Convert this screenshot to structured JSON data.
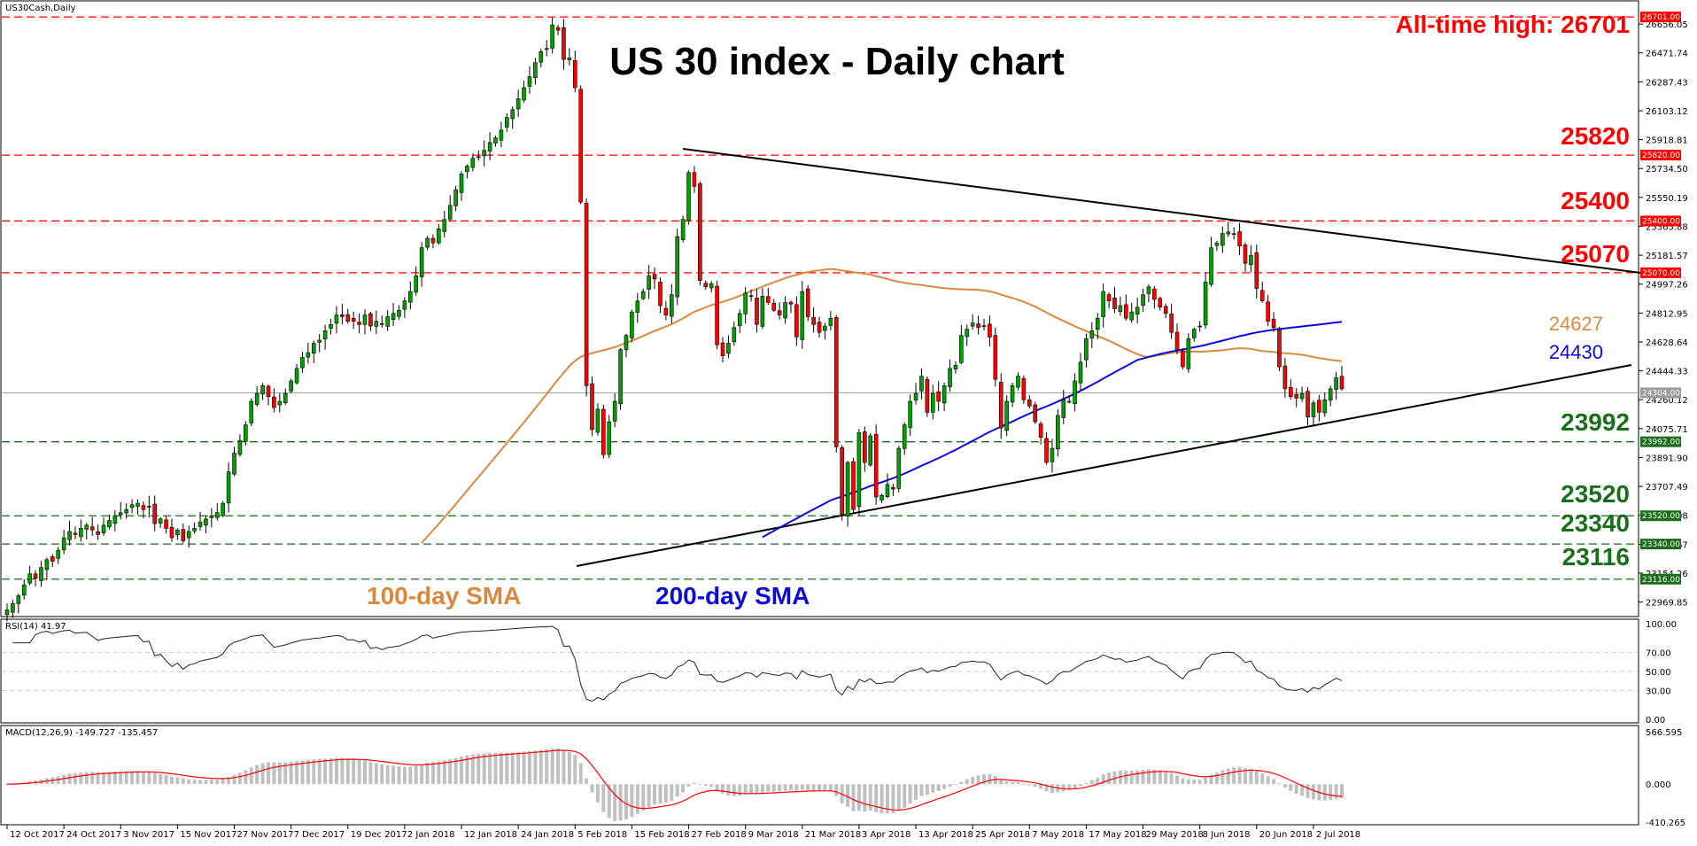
{
  "chart_data": [
    {
      "type": "candlestick",
      "symbol_label": "US30Cash,Daily",
      "title": "US 30 index - Daily chart",
      "ylim": [
        22900,
        26730
      ],
      "y_ticks": [
        22969.85,
        23154.26,
        23338.67,
        23523.08,
        23707.49,
        23891.9,
        24075.71,
        24260.12,
        24444.33,
        24628.64,
        24812.95,
        24997.26,
        25181.57,
        25365.88,
        25550.19,
        25734.5,
        25918.81,
        26103.12,
        26287.43,
        26471.74,
        26656.05
      ],
      "y_tick_labels": [
        "22969.85",
        "23154.26",
        "23338.67",
        "23523.08",
        "23707.49",
        "23891.90",
        "24075.71",
        "24260.12",
        "24444.33",
        "24628.64",
        "24812.95",
        "24997.26",
        "25181.57",
        "25365.88",
        "25550.19",
        "25734.50",
        "25918.81",
        "26103.12",
        "26287.43",
        "26471.74",
        "26656.05"
      ],
      "x_tick_labels": [
        "12 Oct 2017",
        "24 Oct 2017",
        "3 Nov 2017",
        "15 Nov 2017",
        "27 Nov 2017",
        "7 Dec 2017",
        "19 Dec 2017",
        "2 Jan 2018",
        "12 Jan 2018",
        "24 Jan 2018",
        "5 Feb 2018",
        "15 Feb 2018",
        "27 Feb 2018",
        "9 Mar 2018",
        "21 Mar 2018",
        "3 Apr 2018",
        "13 Apr 2018",
        "25 Apr 2018",
        "7 May 2018",
        "17 May 2018",
        "29 May 2018",
        "8 Jun 2018",
        "20 Jun 2018",
        "2 Jul 2018"
      ],
      "closes": [
        22920,
        22960,
        23010,
        23080,
        23150,
        23120,
        23190,
        23240,
        23230,
        23300,
        23380,
        23420,
        23400,
        23440,
        23460,
        23430,
        23400,
        23460,
        23490,
        23520,
        23540,
        23560,
        23590,
        23600,
        23560,
        23580,
        23470,
        23500,
        23440,
        23380,
        23430,
        23360,
        23420,
        23440,
        23480,
        23500,
        23520,
        23540,
        23600,
        23800,
        23920,
        24000,
        24100,
        24250,
        24300,
        24350,
        24280,
        24210,
        24250,
        24300,
        24380,
        24460,
        24530,
        24560,
        24620,
        24640,
        24700,
        24740,
        24800,
        24790,
        24760,
        24760,
        24740,
        24800,
        24730,
        24760,
        24740,
        24790,
        24810,
        24830,
        24890,
        24950,
        25050,
        25230,
        25290,
        25260,
        25350,
        25410,
        25500,
        25600,
        25700,
        25750,
        25800,
        25810,
        25850,
        25900,
        25930,
        25980,
        26060,
        26110,
        26180,
        26250,
        26320,
        26410,
        26480,
        26500,
        26650,
        26616,
        26430,
        26440,
        26250,
        25520,
        24350,
        24070,
        24200,
        23910,
        24120,
        24250,
        24580,
        24670,
        24820,
        24890,
        24950,
        25050,
        25030,
        24860,
        24800,
        24930,
        25300,
        25410,
        25709,
        25620,
        25020,
        24980,
        25000,
        24610,
        24540,
        24620,
        24720,
        24810,
        24940,
        24920,
        24740,
        24920,
        24880,
        24830,
        24800,
        24880,
        24870,
        24660,
        24950,
        24790,
        24740,
        24690,
        24730,
        24780,
        23960,
        23530,
        23860,
        23560,
        24050,
        23860,
        24030,
        23640,
        23650,
        23720,
        23690,
        23950,
        24100,
        24250,
        24300,
        24410,
        24180,
        24300,
        24250,
        24350,
        24460,
        24480,
        24670,
        24710,
        24750,
        24720,
        24730,
        24660,
        24390,
        24080,
        24250,
        24350,
        24410,
        24260,
        24220,
        24120,
        24020,
        23860,
        23950,
        24160,
        24260,
        24250,
        24380,
        24500,
        24650,
        24700,
        24780,
        24950,
        24890,
        24840,
        24860,
        24780,
        24820,
        24850,
        24930,
        24980,
        24900,
        24850,
        24810,
        24690,
        24580,
        24470,
        24650,
        24710,
        24730,
        25010,
        25230,
        25260,
        25320,
        25330,
        25320,
        25240,
        25130,
        25180,
        24970,
        24890,
        24760,
        24720,
        24470,
        24330,
        24280,
        24270,
        24300,
        24150,
        24240,
        24180,
        24260,
        24330,
        24400,
        24330
      ]
    },
    {
      "type": "line",
      "label": "RSI(14) 41.97",
      "ylim": [
        0,
        100
      ],
      "y_ticks": [
        0,
        30,
        50,
        70,
        100
      ],
      "y_tick_labels": [
        "0.00",
        "30.00",
        "50.00",
        "70.00",
        "100.00"
      ]
    },
    {
      "type": "bar",
      "label": "MACD(12,26,9) -149.727 -135.457",
      "ylim": [
        -410.265,
        566.595
      ],
      "y_ticks": [
        -410.265,
        0,
        566.595
      ],
      "y_tick_labels": [
        "-410.265",
        "0.000",
        "566.595"
      ]
    }
  ],
  "annotations": {
    "ath_label": "All-time high: 26701",
    "levels_red": [
      {
        "value": 26701,
        "label": "",
        "box": "26701.00"
      },
      {
        "value": 25820,
        "label": "25820",
        "box": "25820.00"
      },
      {
        "value": 25400,
        "label": "25400",
        "box": "25400.00"
      },
      {
        "value": 25070,
        "label": "25070",
        "box": "25070.00"
      }
    ],
    "levels_green": [
      {
        "value": 23992,
        "label": "23992",
        "box": "23992.00"
      },
      {
        "value": 23520,
        "label": "23520",
        "box": "23520.00"
      },
      {
        "value": 23340,
        "label": "23340",
        "box": "23340.00"
      },
      {
        "value": 23116,
        "label": "23116",
        "box": "23116.00"
      }
    ],
    "current_price_box": "24304.00",
    "sma100_label": "100-day SMA",
    "sma200_label": "200-day SMA",
    "sma100_value": "24627",
    "sma200_value": "24430"
  },
  "colors": {
    "bull": "#00a000",
    "bear": "#ff0000",
    "sma100": "#d8893e",
    "sma200": "#0b0bd8",
    "resistance": "#ff0000",
    "support": "#1a6d1a",
    "hist": "#c0c0c0",
    "macd_signal": "#ff0000"
  }
}
